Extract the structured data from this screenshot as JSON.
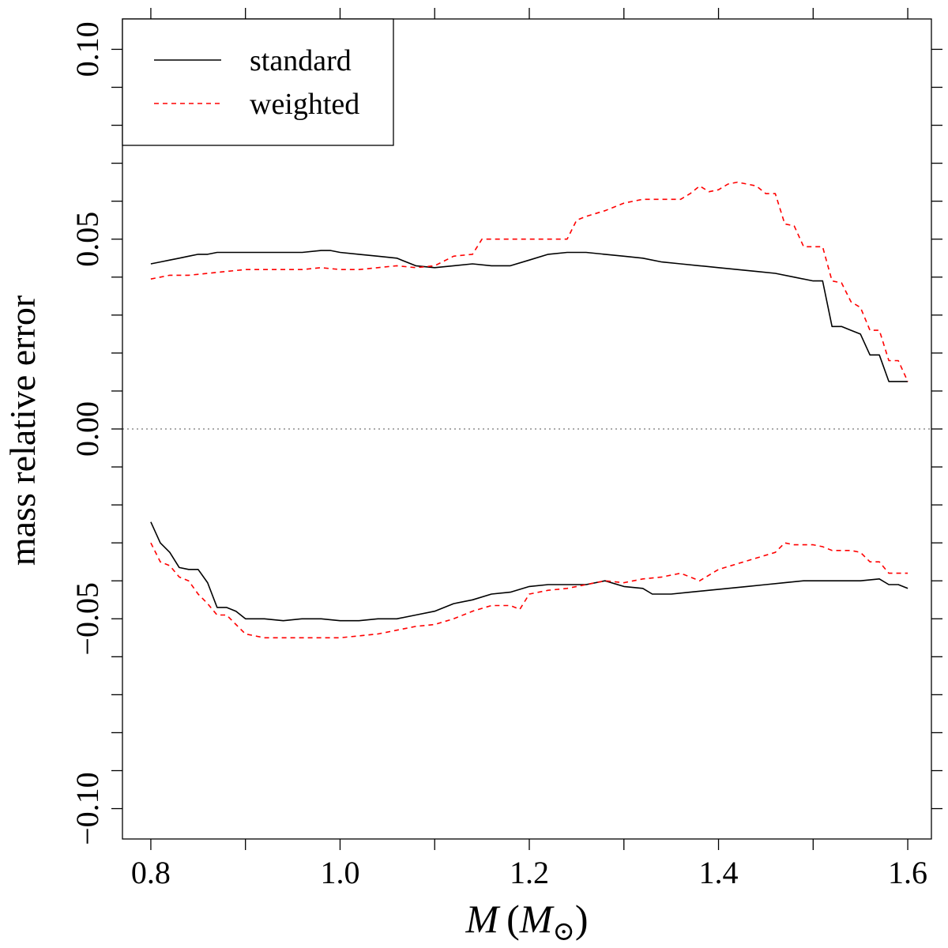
{
  "chart_data": {
    "type": "line",
    "title": "",
    "xlabel": "M (M⊙)",
    "xlabel_parts": {
      "var": "M",
      "unit_var": "M",
      "unit_sub": "⊙"
    },
    "ylabel": "mass relative error",
    "xlim": [
      0.77,
      1.625
    ],
    "ylim": [
      -0.108,
      0.108
    ],
    "x_ticks": [
      {
        "value": 0.8,
        "label": "0.8"
      },
      {
        "value": 1.0,
        "label": "1.0"
      },
      {
        "value": 1.2,
        "label": "1.2"
      },
      {
        "value": 1.4,
        "label": "1.4"
      },
      {
        "value": 1.6,
        "label": "1.6"
      }
    ],
    "x_minor_ticks": [
      0.9,
      1.1,
      1.3,
      1.5
    ],
    "y_ticks": [
      {
        "value": -0.1,
        "label": "−0.10"
      },
      {
        "value": -0.05,
        "label": "−0.05"
      },
      {
        "value": 0.0,
        "label": "0.00"
      },
      {
        "value": 0.05,
        "label": "0.05"
      },
      {
        "value": 0.1,
        "label": "0.10"
      }
    ],
    "y_minor_ticks": [
      -0.09,
      -0.08,
      -0.07,
      -0.06,
      -0.04,
      -0.03,
      -0.02,
      -0.01,
      0.01,
      0.02,
      0.03,
      0.04,
      0.06,
      0.07,
      0.08,
      0.09
    ],
    "reference_line": {
      "y": 0.0,
      "style": "dotted"
    },
    "legend": {
      "position": "top-left",
      "entries": [
        {
          "name": "standard",
          "color": "#000000",
          "style": "solid"
        },
        {
          "name": "weighted",
          "color": "#ff0000",
          "style": "dashed"
        }
      ]
    },
    "series": [
      {
        "name": "standard upper",
        "legend": "standard",
        "color": "#000000",
        "style": "solid",
        "x": [
          0.8,
          0.81,
          0.82,
          0.83,
          0.84,
          0.85,
          0.86,
          0.87,
          0.88,
          0.89,
          0.9,
          0.92,
          0.94,
          0.96,
          0.98,
          0.99,
          1.0,
          1.02,
          1.04,
          1.06,
          1.08,
          1.1,
          1.12,
          1.14,
          1.16,
          1.18,
          1.2,
          1.22,
          1.24,
          1.26,
          1.28,
          1.3,
          1.32,
          1.34,
          1.36,
          1.38,
          1.4,
          1.42,
          1.44,
          1.46,
          1.48,
          1.5,
          1.51,
          1.52,
          1.53,
          1.54,
          1.55,
          1.56,
          1.57,
          1.58,
          1.59,
          1.6
        ],
        "y": [
          0.0435,
          0.044,
          0.0445,
          0.045,
          0.0455,
          0.046,
          0.046,
          0.0465,
          0.0465,
          0.0465,
          0.0465,
          0.0465,
          0.0465,
          0.0465,
          0.047,
          0.047,
          0.0465,
          0.046,
          0.0455,
          0.045,
          0.043,
          0.0425,
          0.043,
          0.0435,
          0.043,
          0.043,
          0.0445,
          0.046,
          0.0465,
          0.0465,
          0.046,
          0.0455,
          0.045,
          0.044,
          0.0435,
          0.043,
          0.0425,
          0.042,
          0.0415,
          0.041,
          0.04,
          0.039,
          0.039,
          0.027,
          0.027,
          0.026,
          0.025,
          0.0195,
          0.0195,
          0.0125,
          0.0125,
          0.0125
        ]
      },
      {
        "name": "weighted upper",
        "legend": "weighted",
        "color": "#ff0000",
        "style": "dashed",
        "x": [
          0.8,
          0.81,
          0.82,
          0.83,
          0.84,
          0.86,
          0.88,
          0.9,
          0.92,
          0.94,
          0.96,
          0.98,
          1.0,
          1.02,
          1.04,
          1.06,
          1.08,
          1.1,
          1.12,
          1.14,
          1.15,
          1.16,
          1.18,
          1.2,
          1.22,
          1.24,
          1.25,
          1.26,
          1.28,
          1.3,
          1.32,
          1.34,
          1.36,
          1.37,
          1.38,
          1.39,
          1.4,
          1.41,
          1.42,
          1.43,
          1.44,
          1.45,
          1.46,
          1.47,
          1.48,
          1.49,
          1.5,
          1.51,
          1.52,
          1.53,
          1.54,
          1.55,
          1.56,
          1.57,
          1.58,
          1.59,
          1.6
        ],
        "y": [
          0.0395,
          0.04,
          0.0405,
          0.0405,
          0.0405,
          0.041,
          0.0415,
          0.042,
          0.042,
          0.042,
          0.042,
          0.0425,
          0.042,
          0.042,
          0.0425,
          0.043,
          0.0425,
          0.043,
          0.0455,
          0.046,
          0.05,
          0.05,
          0.05,
          0.05,
          0.05,
          0.05,
          0.055,
          0.056,
          0.0575,
          0.0595,
          0.0605,
          0.0605,
          0.0605,
          0.062,
          0.064,
          0.0625,
          0.063,
          0.0645,
          0.065,
          0.0645,
          0.064,
          0.062,
          0.062,
          0.054,
          0.0535,
          0.048,
          0.048,
          0.048,
          0.039,
          0.0385,
          0.0335,
          0.032,
          0.026,
          0.026,
          0.018,
          0.018,
          0.0125
        ]
      },
      {
        "name": "standard lower",
        "legend": "standard",
        "color": "#000000",
        "style": "solid",
        "x": [
          0.8,
          0.81,
          0.82,
          0.83,
          0.84,
          0.85,
          0.86,
          0.87,
          0.88,
          0.89,
          0.9,
          0.92,
          0.94,
          0.96,
          0.98,
          1.0,
          1.02,
          1.04,
          1.06,
          1.08,
          1.1,
          1.12,
          1.14,
          1.16,
          1.18,
          1.2,
          1.22,
          1.24,
          1.26,
          1.28,
          1.3,
          1.32,
          1.33,
          1.35,
          1.37,
          1.39,
          1.41,
          1.43,
          1.45,
          1.47,
          1.49,
          1.51,
          1.53,
          1.55,
          1.57,
          1.58,
          1.59,
          1.6
        ],
        "y": [
          -0.0245,
          -0.03,
          -0.0325,
          -0.0365,
          -0.037,
          -0.037,
          -0.0405,
          -0.047,
          -0.047,
          -0.048,
          -0.05,
          -0.05,
          -0.0505,
          -0.05,
          -0.05,
          -0.0505,
          -0.0505,
          -0.05,
          -0.05,
          -0.049,
          -0.048,
          -0.046,
          -0.045,
          -0.0435,
          -0.043,
          -0.0415,
          -0.041,
          -0.041,
          -0.041,
          -0.04,
          -0.0415,
          -0.042,
          -0.0435,
          -0.0435,
          -0.043,
          -0.0425,
          -0.042,
          -0.0415,
          -0.041,
          -0.0405,
          -0.04,
          -0.04,
          -0.04,
          -0.04,
          -0.0395,
          -0.041,
          -0.041,
          -0.042
        ]
      },
      {
        "name": "weighted lower",
        "legend": "weighted",
        "color": "#ff0000",
        "style": "dashed",
        "x": [
          0.8,
          0.81,
          0.82,
          0.83,
          0.84,
          0.85,
          0.86,
          0.87,
          0.88,
          0.89,
          0.9,
          0.92,
          0.94,
          0.96,
          0.98,
          1.0,
          1.02,
          1.04,
          1.06,
          1.08,
          1.1,
          1.12,
          1.14,
          1.16,
          1.18,
          1.19,
          1.2,
          1.22,
          1.24,
          1.26,
          1.28,
          1.3,
          1.32,
          1.34,
          1.36,
          1.38,
          1.4,
          1.42,
          1.44,
          1.46,
          1.47,
          1.48,
          1.5,
          1.51,
          1.52,
          1.54,
          1.55,
          1.56,
          1.57,
          1.58,
          1.59,
          1.6
        ],
        "y": [
          -0.03,
          -0.035,
          -0.036,
          -0.039,
          -0.04,
          -0.0435,
          -0.046,
          -0.049,
          -0.049,
          -0.0515,
          -0.054,
          -0.055,
          -0.055,
          -0.055,
          -0.055,
          -0.055,
          -0.0545,
          -0.054,
          -0.053,
          -0.052,
          -0.0515,
          -0.05,
          -0.048,
          -0.0465,
          -0.0465,
          -0.0475,
          -0.0435,
          -0.0425,
          -0.042,
          -0.041,
          -0.04,
          -0.0405,
          -0.0395,
          -0.039,
          -0.038,
          -0.04,
          -0.037,
          -0.0355,
          -0.034,
          -0.0325,
          -0.03,
          -0.0305,
          -0.0305,
          -0.031,
          -0.032,
          -0.032,
          -0.0325,
          -0.035,
          -0.035,
          -0.038,
          -0.038,
          -0.038
        ]
      }
    ]
  }
}
